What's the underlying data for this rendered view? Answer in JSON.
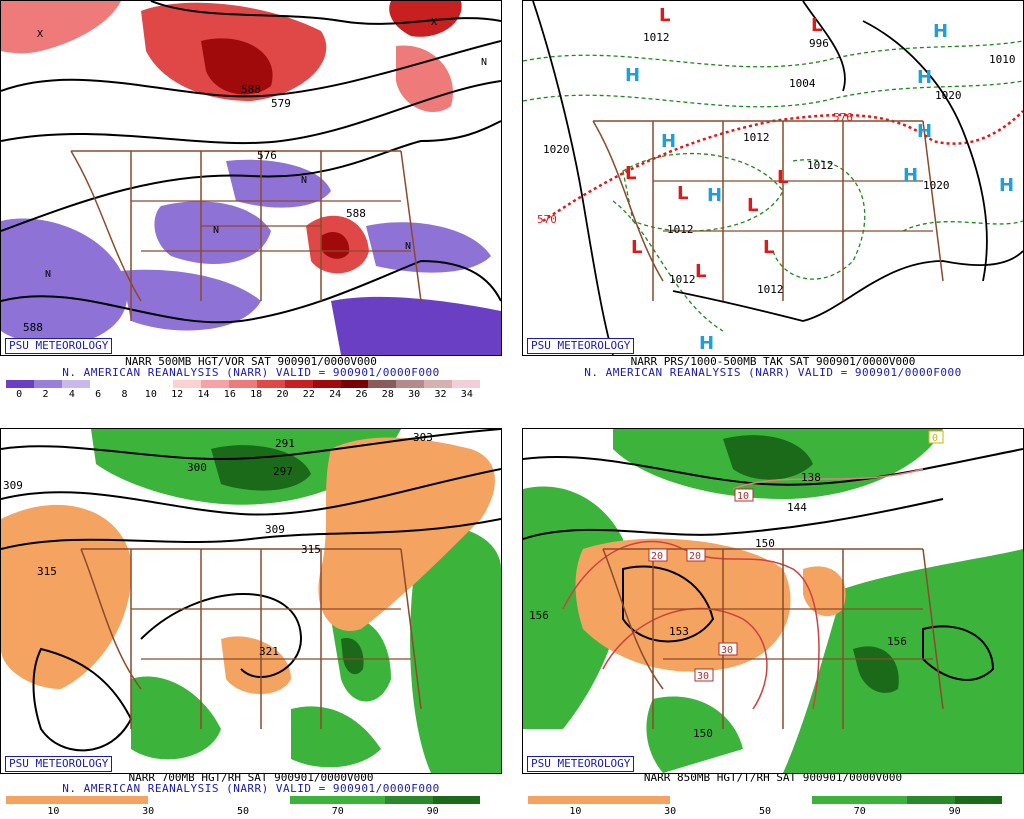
{
  "panels": {
    "tl": {
      "badge": "PSU METEOROLOGY",
      "line1": "NARR 500MB HGT/VOR SAT 900901/0000V000",
      "line2": "N. AMERICAN REANALYSIS (NARR) VALID = 900901/0000F000",
      "labels": [
        "579",
        "588",
        "588",
        "576",
        "588",
        "588"
      ],
      "scale_colors": [
        "#6a3fc4",
        "#9a7fd8",
        "#c7b9ea",
        "#ffffff",
        "#ffffff",
        "#ffffff",
        "#ffd0d0",
        "#f7a3a3",
        "#ee7a7a",
        "#e04848",
        "#c82020",
        "#a00a0a",
        "#7a0000",
        "#8b5a5a",
        "#b58a8a",
        "#d9b0b0",
        "#f2cfd8"
      ],
      "ticks": [
        "0",
        "2",
        "4",
        "6",
        "8",
        "10",
        "12",
        "14",
        "16",
        "18",
        "20",
        "22",
        "24",
        "26",
        "28",
        "30",
        "32",
        "34"
      ]
    },
    "tr": {
      "badge": "PSU METEOROLOGY",
      "line1": "NARR PRS/1000-500MB TAK SAT 900901/0000V000",
      "line2": "N. AMERICAN REANALYSIS (NARR) VALID = 900901/0000F000",
      "labels": [
        "1012",
        "996",
        "1004",
        "1012",
        "1020",
        "1012",
        "1012",
        "1012",
        "1012",
        "1020",
        "1020",
        "1010",
        "576",
        "570"
      ]
    },
    "bl": {
      "badge": "PSU METEOROLOGY",
      "line1": "NARR 700MB HGT/RH SAT 900901/0000V000",
      "line2": "N. AMERICAN REANALYSIS (NARR) VALID = 900901/0000F000",
      "labels": [
        "291",
        "303",
        "300",
        "297",
        "309",
        "315",
        "315",
        "321",
        "309",
        "309"
      ],
      "scale_colors": [
        "#f4a460",
        "#f4a460",
        "#f4a460",
        "#ffffff",
        "#ffffff",
        "#ffffff",
        "#3cb43c",
        "#3cb43c",
        "#2a8a2a",
        "#1a6a1a"
      ],
      "ticks": [
        "10",
        "30",
        "50",
        "70",
        "90"
      ]
    },
    "br": {
      "badge": "PSU METEOROLOGY",
      "line1": "NARR 850MB HGT/T/RH SAT 900901/0000V000",
      "labels": [
        "156",
        "150",
        "144",
        "138",
        "153",
        "150",
        "156",
        "150"
      ],
      "boxes": [
        "10",
        "20",
        "20",
        "30",
        "30",
        "0"
      ],
      "scale_colors": [
        "#f4a460",
        "#f4a460",
        "#f4a460",
        "#ffffff",
        "#ffffff",
        "#ffffff",
        "#3cb43c",
        "#3cb43c",
        "#2a8a2a",
        "#1a6a1a"
      ],
      "ticks": [
        "10",
        "30",
        "50",
        "70",
        "90"
      ]
    }
  },
  "symbols": {
    "high": "H",
    "low": "L",
    "north": "N",
    "x": "X"
  },
  "colors": {
    "high": "#1aa0e0",
    "low": "#e01818",
    "badge": "#1a1ab4",
    "border": "#8b4a2a"
  }
}
